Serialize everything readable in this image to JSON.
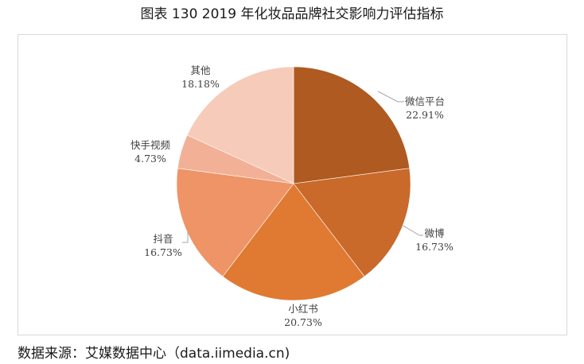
{
  "title": "图表 130 2019 年化妆品品牌社交影响力评估指标",
  "source": "数据来源：艾媒数据中心（data.iimedia.cn)",
  "chart_data": {
    "type": "pie",
    "title": "图表 130 2019 年化妆品品牌社交影响力评估指标",
    "start_angle": "12 o'clock, clockwise",
    "categories": [
      "微信平台",
      "微博",
      "小红书",
      "抖音",
      "快手视频",
      "其他"
    ],
    "values": [
      22.91,
      16.73,
      20.73,
      16.73,
      4.73,
      18.18
    ],
    "labels": [
      "22.91%",
      "16.73%",
      "20.73%",
      "16.73%",
      "4.73%",
      "18.18%"
    ],
    "colors": [
      "#AE5A21",
      "#C9692A",
      "#E07A32",
      "#EE9466",
      "#F2B196",
      "#F6CBBA"
    ],
    "legend": "none (data labels with leader lines)"
  }
}
